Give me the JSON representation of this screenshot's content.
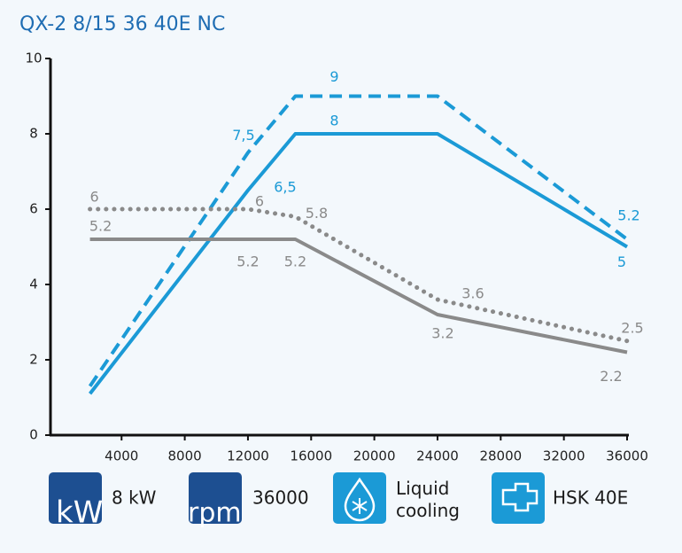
{
  "chart_data": {
    "type": "line",
    "title": "QX-2 8/15 36 40E NC",
    "xlim": [
      -500,
      36000
    ],
    "xticks": [
      4000,
      8000,
      12000,
      16000,
      20000,
      24000,
      28000,
      32000,
      36000
    ],
    "ylim": [
      0,
      10
    ],
    "yticks": [
      0,
      2,
      4,
      6,
      8,
      10
    ],
    "series": [
      {
        "color": "#1b9ad6",
        "style": "solid",
        "x": [
          2000,
          12000,
          15000,
          24000,
          36000
        ],
        "values": [
          1.1,
          6.5,
          8,
          8,
          5
        ],
        "value_labels": [
          null,
          "6,5",
          "8",
          null,
          "5"
        ]
      },
      {
        "color": "#1b9ad6",
        "style": "dashed",
        "x": [
          2000,
          12000,
          15000,
          24000,
          36000
        ],
        "values": [
          1.3,
          7.5,
          9,
          9,
          5.2
        ],
        "value_labels": [
          null,
          "7,5",
          "9",
          null,
          "5.2"
        ]
      },
      {
        "color": "#8a8a8a",
        "style": "solid",
        "x": [
          2000,
          12000,
          15000,
          24000,
          36000
        ],
        "values": [
          5.2,
          5.2,
          5.2,
          3.2,
          2.2
        ],
        "value_labels": [
          "5.2",
          "5.2",
          "5.2",
          "3.2",
          "2.2"
        ]
      },
      {
        "color": "#8a8a8a",
        "style": "dotted",
        "x": [
          2000,
          12000,
          15000,
          24000,
          36000
        ],
        "values": [
          6,
          6,
          5.8,
          3.6,
          2.5
        ],
        "value_labels": [
          "6",
          "6",
          "5.8",
          "3.6",
          "2.5"
        ]
      }
    ]
  },
  "features": [
    {
      "icon": "kW",
      "label": "8 kW"
    },
    {
      "icon": "rpm",
      "label": "36000"
    },
    {
      "label": "Liquid cooling"
    },
    {
      "label": "HSK 40E"
    }
  ]
}
